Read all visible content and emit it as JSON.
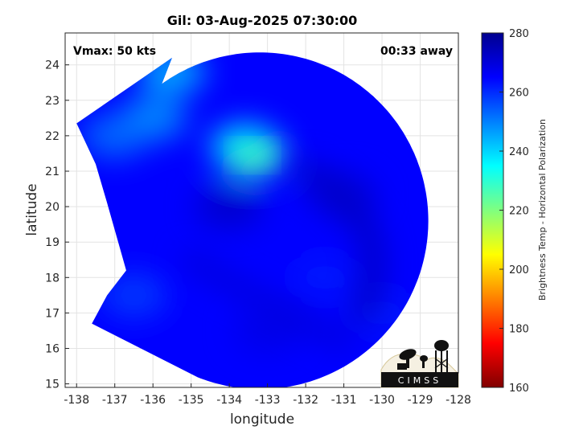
{
  "chart_data": {
    "type": "heatmap",
    "title": "Gil: 03-Aug-2025 07:30:00",
    "xlabel": "longitude",
    "ylabel": "latitude",
    "xlim": [
      -138.3,
      -128
    ],
    "ylim": [
      14.9,
      24.9
    ],
    "xticks": [
      -138,
      -137,
      -136,
      -135,
      -134,
      -133,
      -132,
      -131,
      -130,
      -129,
      -128
    ],
    "yticks": [
      15,
      16,
      17,
      18,
      19,
      20,
      21,
      22,
      23,
      24
    ],
    "grid": true,
    "annotations": {
      "top_left": "Vmax: 50 kts",
      "top_right": "00:33 away"
    },
    "colorbar": {
      "label": "Brightness Temp - Horizontal Polarization",
      "range": [
        160,
        280
      ],
      "ticks": [
        160,
        180,
        200,
        220,
        240,
        260,
        280
      ],
      "colormap": "jet"
    },
    "swath": {
      "center": [
        -133.2,
        19.6
      ],
      "radius_deg": 4.75,
      "background_value": 265,
      "features": [
        {
          "lon": -133.4,
          "lat": 21.5,
          "value": 228
        },
        {
          "lon": -133.6,
          "lat": 21.7,
          "value": 238
        },
        {
          "lon": -136.0,
          "lat": 22.5,
          "value": 248
        },
        {
          "lon": -135.5,
          "lat": 23.8,
          "value": 244
        },
        {
          "lon": -137.0,
          "lat": 22.0,
          "value": 252
        },
        {
          "lon": -136.5,
          "lat": 17.5,
          "value": 258
        },
        {
          "lon": -134.0,
          "lat": 20.0,
          "value": 272
        },
        {
          "lon": -131.0,
          "lat": 20.3,
          "value": 270
        },
        {
          "lon": -131.5,
          "lat": 18.0,
          "value": 262
        },
        {
          "lon": -130.0,
          "lat": 17.0,
          "value": 262
        },
        {
          "lon": -133.0,
          "lat": 16.5,
          "value": 268
        }
      ]
    },
    "logo_text": "CIMSS"
  }
}
